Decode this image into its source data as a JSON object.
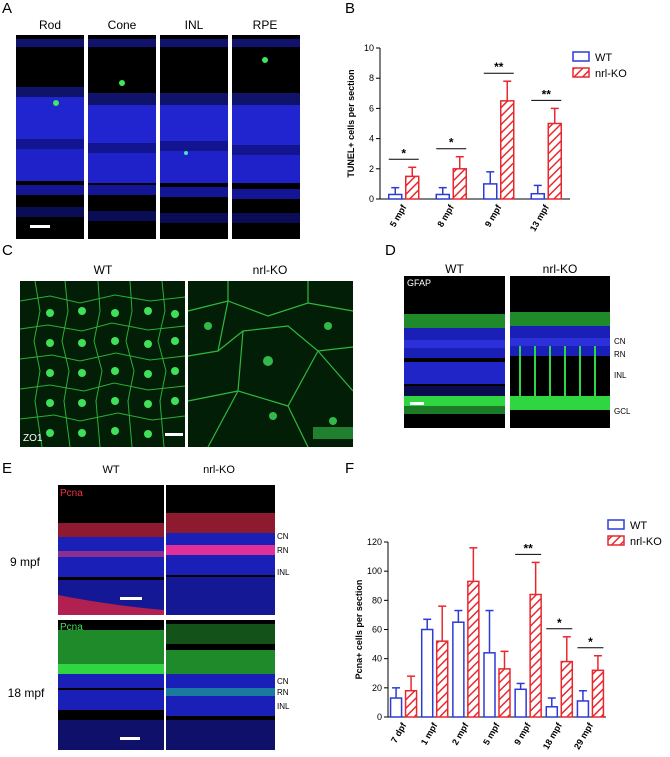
{
  "panels": {
    "A": {
      "letter": "A",
      "labels": [
        "Rod",
        "Cone",
        "INL",
        "RPE"
      ]
    },
    "B": {
      "letter": "B"
    },
    "C": {
      "letter": "C",
      "labels": [
        "WT",
        "nrl-KO"
      ],
      "stain": "ZO1"
    },
    "D": {
      "letter": "D",
      "labels": [
        "WT",
        "nrl-KO"
      ],
      "stain": "GFAP",
      "layers": [
        "CN",
        "RN",
        "INL",
        "GCL"
      ]
    },
    "E": {
      "letter": "E",
      "labels": [
        "WT",
        "nrl-KO"
      ],
      "stain_top": "Pcna",
      "stain_bottom": "Pcna",
      "rows": [
        "9 mpf",
        "18 mpf"
      ],
      "layers": [
        "CN",
        "RN",
        "INL"
      ]
    },
    "F": {
      "letter": "F"
    }
  },
  "colors": {
    "wt": "#2c3bd6",
    "ko": "#e8282e",
    "nuclei": "#1f23d0",
    "green": "#2fd642",
    "red": "#e8283a"
  },
  "chart_data": [
    {
      "type": "bar",
      "panel": "B",
      "ylabel": "TUNEL+ cells per section",
      "ylim": [
        0,
        10
      ],
      "yticks": [
        0,
        2,
        4,
        6,
        8,
        10
      ],
      "categories": [
        "5 mpf",
        "8 mpf",
        "9 mpf",
        "13 mpf"
      ],
      "series": [
        {
          "name": "WT",
          "values": [
            0.3,
            0.3,
            1.0,
            0.35
          ],
          "errors": [
            0.45,
            0.45,
            0.8,
            0.55
          ]
        },
        {
          "name": "nrl-KO",
          "values": [
            1.5,
            2.0,
            6.5,
            5.0
          ],
          "errors": [
            0.6,
            0.8,
            1.3,
            1.0
          ]
        }
      ],
      "significance": [
        "*",
        "*",
        "**",
        "**"
      ],
      "legend": "top-right"
    },
    {
      "type": "bar",
      "panel": "F",
      "ylabel": "Pcna+ cells per section",
      "ylim": [
        0,
        120
      ],
      "yticks": [
        0,
        20,
        40,
        60,
        80,
        100,
        120
      ],
      "categories": [
        "7 dpf",
        "1 mpf",
        "2 mpf",
        "5 mpf",
        "9 mpf",
        "18 mpf",
        "29 mpf"
      ],
      "series": [
        {
          "name": "WT",
          "values": [
            13,
            60,
            65,
            44,
            19,
            7,
            11
          ],
          "errors": [
            7,
            7,
            8,
            29,
            4,
            6,
            7
          ]
        },
        {
          "name": "nrl-KO",
          "values": [
            18,
            52,
            93,
            33,
            84,
            38,
            32
          ],
          "errors": [
            10,
            24,
            23,
            12,
            22,
            17,
            10
          ]
        }
      ],
      "significance": [
        "",
        "",
        "",
        "",
        "**",
        "*",
        "*"
      ],
      "legend": "top-right"
    }
  ]
}
